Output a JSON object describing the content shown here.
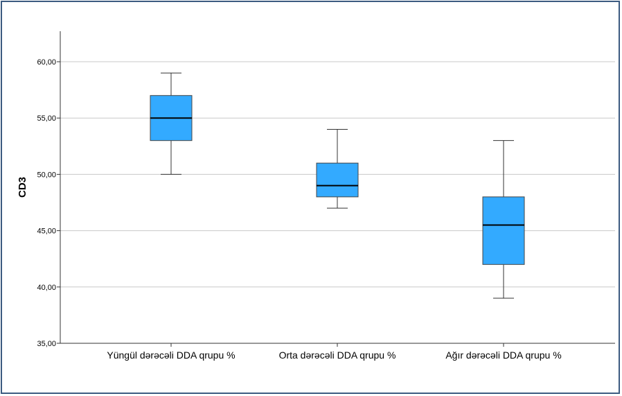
{
  "chart_data": {
    "type": "boxplot",
    "ylabel": "CD3",
    "ylim": [
      35,
      60
    ],
    "yticks": [
      35,
      40,
      45,
      50,
      55,
      60
    ],
    "ytick_labels": [
      "35,00",
      "40,00",
      "45,00",
      "50,00",
      "55,00",
      "60,00"
    ],
    "grid": true,
    "categories": [
      "Yüngül dərəcəli DDA qrupu %",
      "Orta dərəcəli DDA qrupu %",
      "Ağır dərəcəli DDA qrupu %"
    ],
    "boxes": [
      {
        "min": 50,
        "q1": 53,
        "median": 55,
        "q3": 57,
        "max": 59
      },
      {
        "min": 47,
        "q1": 48,
        "median": 49,
        "q3": 51,
        "max": 54
      },
      {
        "min": 39,
        "q1": 42,
        "median": 45.5,
        "q3": 48,
        "max": 53
      }
    ],
    "box_color": "#33aaff"
  }
}
